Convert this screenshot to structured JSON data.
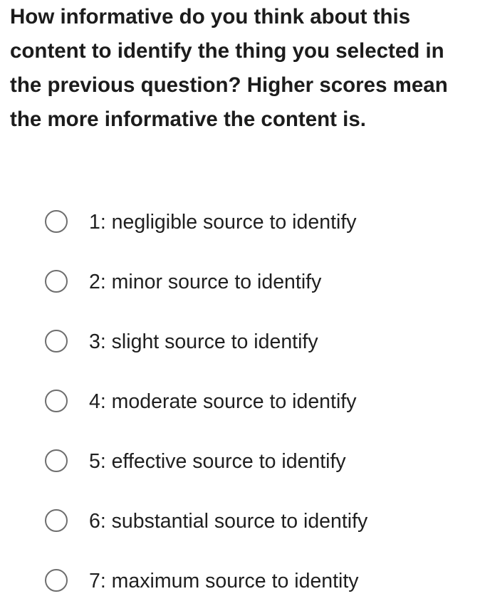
{
  "question": {
    "text": "How informative do you think about this content to identify the thing you selected in the previous question? Higher scores mean the more informative the content is."
  },
  "options": [
    {
      "label": "1: negligible source to identify",
      "selected": false
    },
    {
      "label": "2: minor source to identify",
      "selected": false
    },
    {
      "label": "3: slight source to identify",
      "selected": false
    },
    {
      "label": "4: moderate source to identify",
      "selected": false
    },
    {
      "label": "5: effective source to identify",
      "selected": false
    },
    {
      "label": "6: substantial source to identify",
      "selected": false
    },
    {
      "label": "7: maximum source to identity",
      "selected": false
    }
  ],
  "colors": {
    "text": "#1c1c1c",
    "radio_border": "#6e6e6e",
    "background": "#ffffff"
  }
}
